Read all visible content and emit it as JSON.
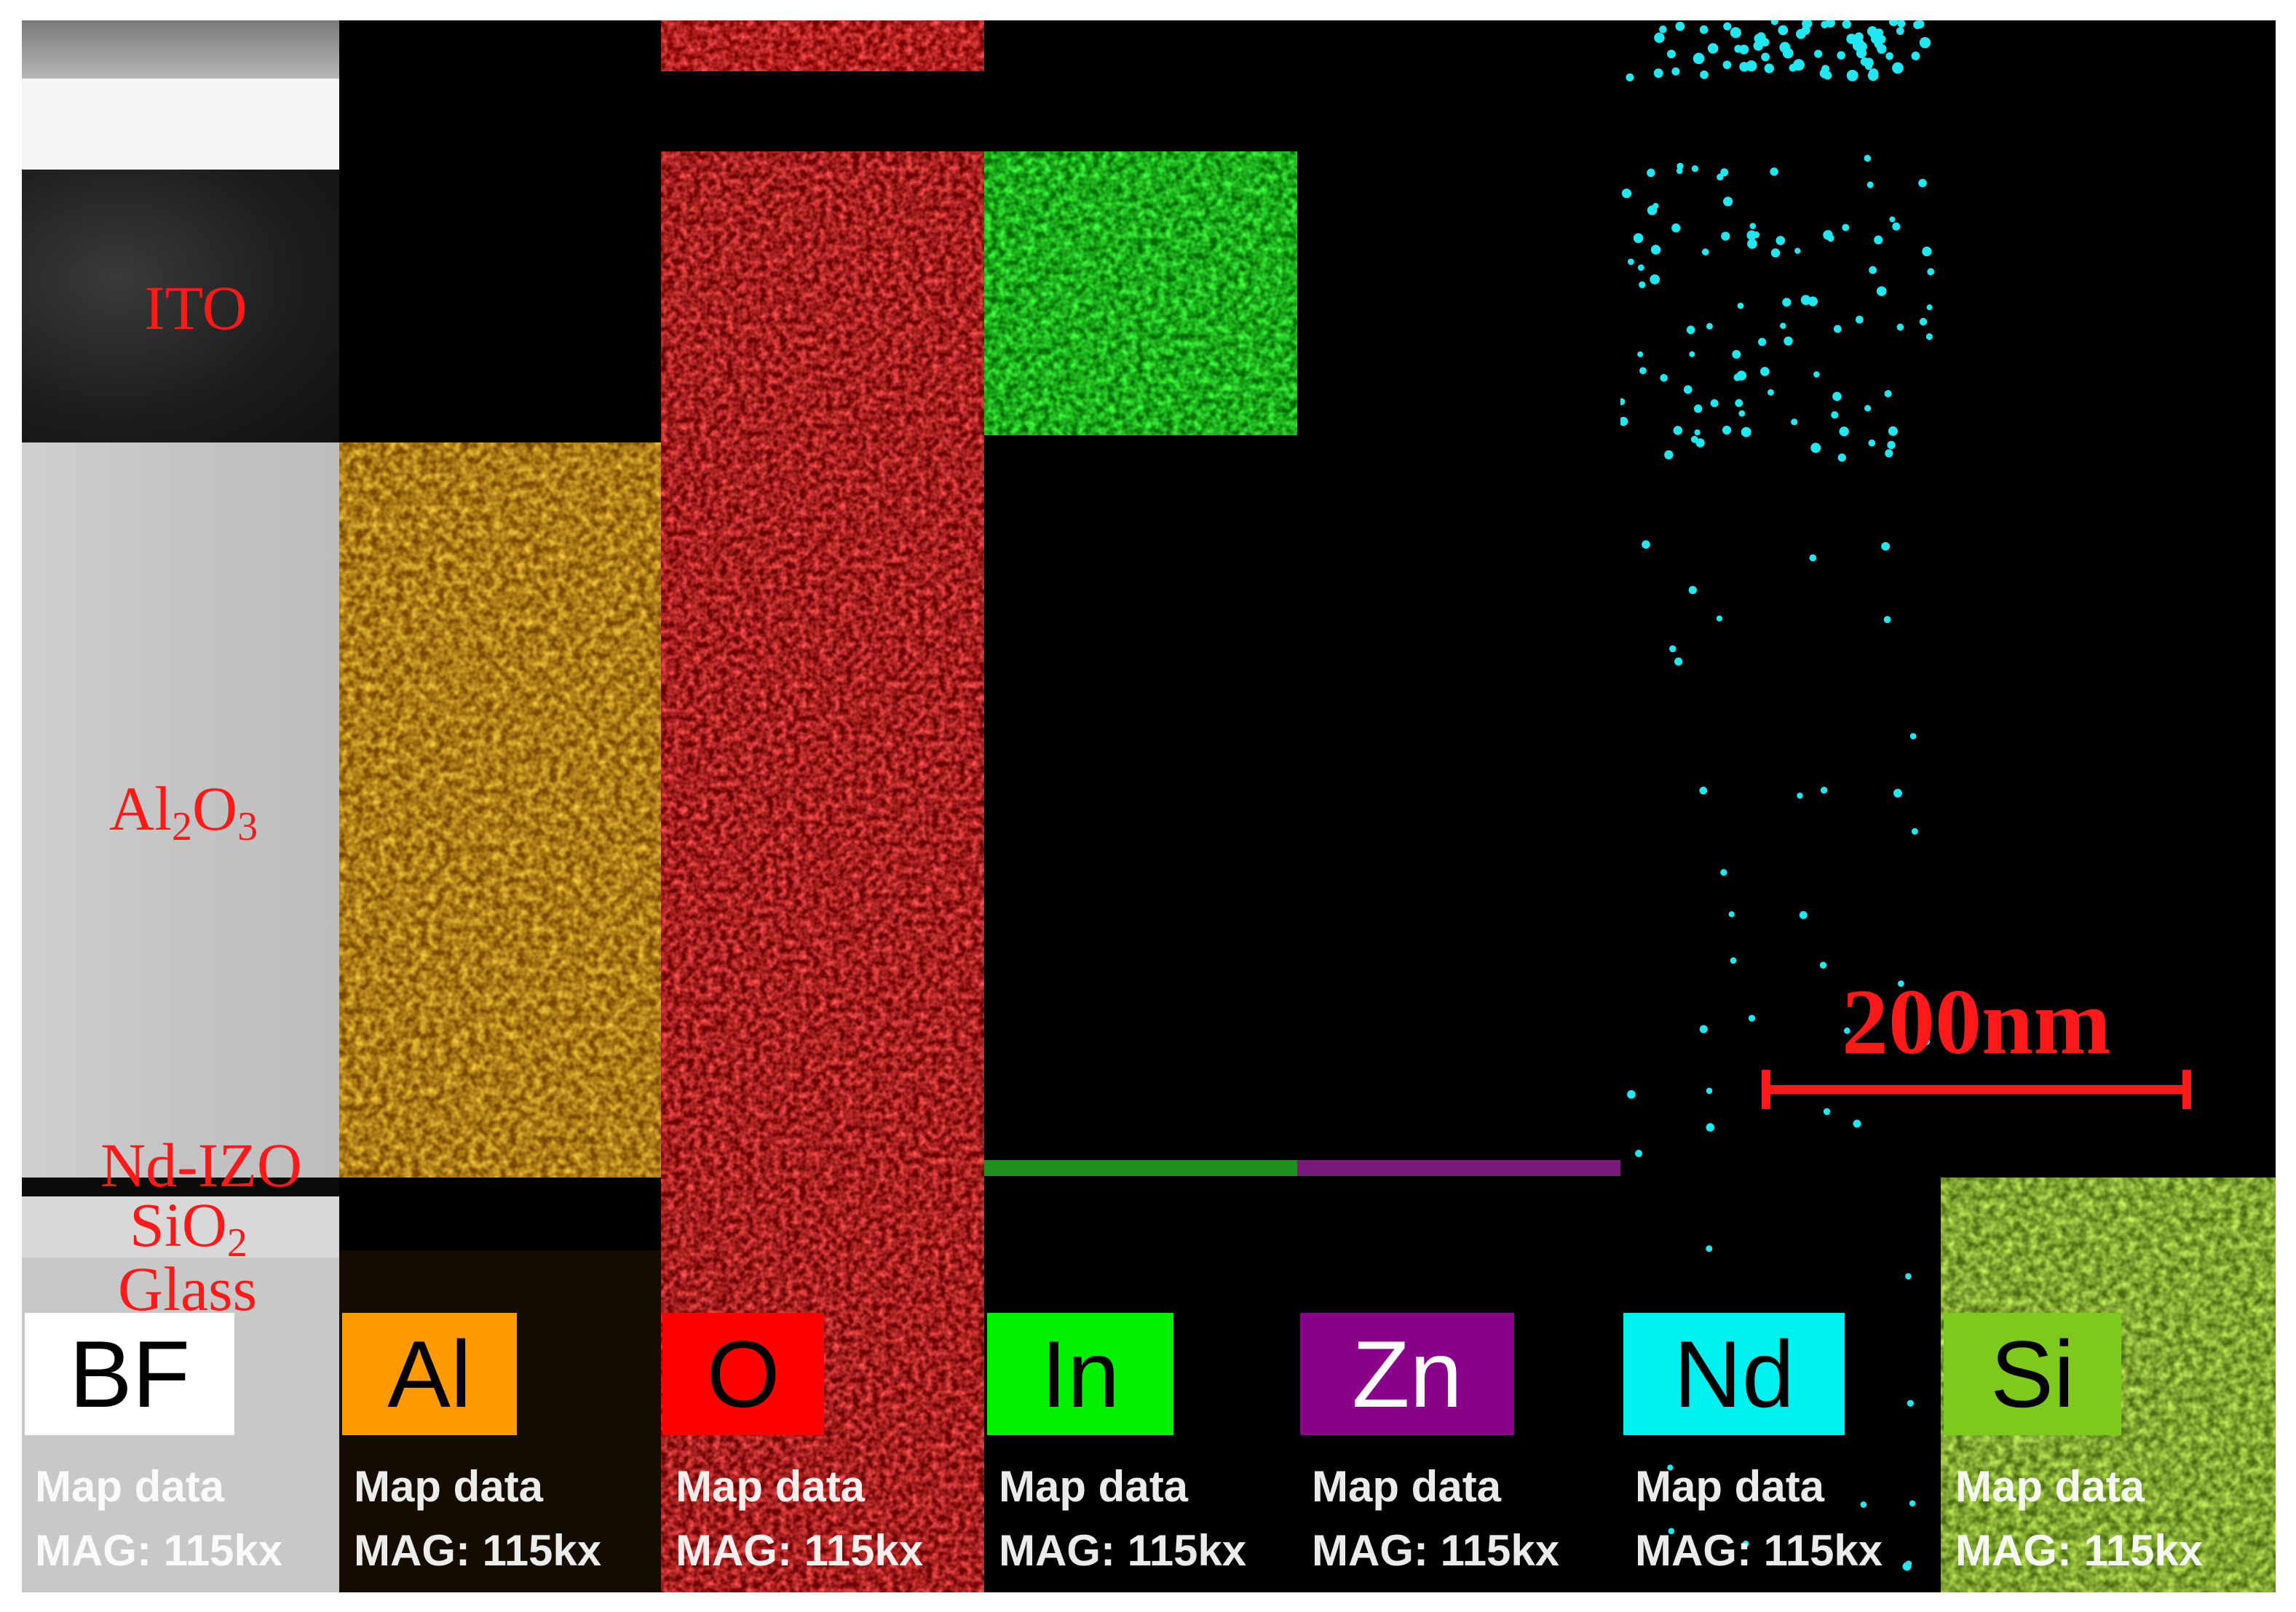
{
  "layers": {
    "ito": "ITO",
    "al2o3_main": "Al",
    "al2o3_sub1": "2",
    "al2o3_mid": "O",
    "al2o3_sub2": "3",
    "ndizo": "Nd-IZO",
    "sio2_main": "SiO",
    "sio2_sub": "2",
    "glass": "Glass"
  },
  "panels": [
    {
      "label": "BF",
      "line1": "Map data",
      "line2": "MAG: 115kx",
      "box_color": "#ffffff",
      "text_color": "#000000"
    },
    {
      "label": "Al",
      "line1": "Map data",
      "line2": "MAG: 115kx",
      "box_color": "#ff9a00",
      "text_color": "#000000"
    },
    {
      "label": "O",
      "line1": "Map data",
      "line2": "MAG: 115kx",
      "box_color": "#ff0000",
      "text_color": "#000000"
    },
    {
      "label": "In",
      "line1": "Map data",
      "line2": "MAG: 115kx",
      "box_color": "#00f000",
      "text_color": "#000000"
    },
    {
      "label": "Zn",
      "line1": "Map data",
      "line2": "MAG: 115kx",
      "box_color": "#8b008b",
      "text_color": "#ffffff"
    },
    {
      "label": "Nd",
      "line1": "Map data",
      "line2": "MAG: 115kx",
      "box_color": "#00f0f0",
      "text_color": "#000000"
    },
    {
      "label": "Si",
      "line1": "Map data",
      "line2": "MAG: 115kx",
      "box_color": "#7fc81e",
      "text_color": "#000000"
    }
  ],
  "scale_bar": {
    "label": "200nm",
    "color": "#ff1a1a"
  }
}
